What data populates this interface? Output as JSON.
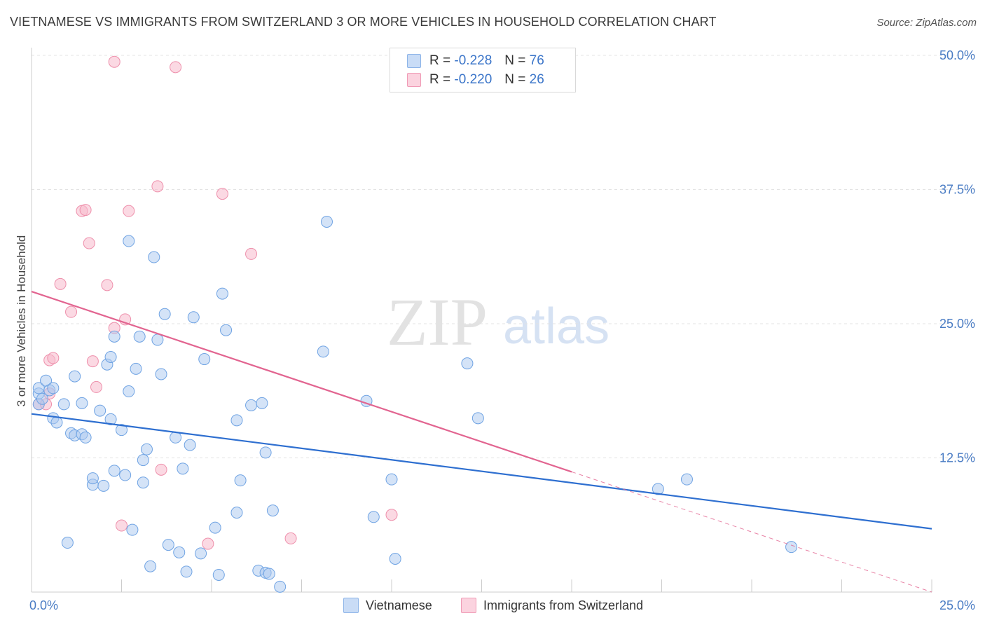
{
  "title": "VIETNAMESE VS IMMIGRANTS FROM SWITZERLAND 3 OR MORE VEHICLES IN HOUSEHOLD CORRELATION CHART",
  "source": "Source: ZipAtlas.com",
  "watermark": {
    "zip": "ZIP",
    "atlas": "atlas"
  },
  "stats_legend": [
    {
      "r_label": "R =",
      "r_value": "-0.228",
      "n_label": "N =",
      "n_value": "76",
      "color": "#a9c8f0"
    },
    {
      "r_label": "R =",
      "r_value": "-0.220",
      "n_label": "N =",
      "n_value": "26",
      "color": "#f7b9cc"
    }
  ],
  "bottom_legend": [
    {
      "label": "Vietnamese",
      "color": "#a9c8f0"
    },
    {
      "label": "Immigrants from Switzerland",
      "color": "#f7b9cc"
    }
  ],
  "chart_data": {
    "type": "scatter",
    "title": "VIETNAMESE VS IMMIGRANTS FROM SWITZERLAND 3 OR MORE VEHICLES IN HOUSEHOLD CORRELATION CHART",
    "xlabel": "",
    "ylabel": "3 or more Vehicles in Household",
    "xlim": [
      0,
      25
    ],
    "ylim": [
      0,
      50
    ],
    "x_tick_labels": [
      "0.0%",
      "25.0%"
    ],
    "y_ticks": [
      12.5,
      25.0,
      37.5,
      50.0
    ],
    "y_tick_labels": [
      "12.5%",
      "25.0%",
      "37.5%",
      "50.0%"
    ],
    "grid": true,
    "legend_position": "top-center",
    "colors": {
      "vietnamese": "#6fa3e3",
      "vietnamese_fill": "#a9c8f0",
      "swiss": "#ee8fab",
      "swiss_fill": "#f7b9cc",
      "blue_line": "#2e6fd0",
      "pink_line": "#e26490"
    },
    "series": [
      {
        "name": "Vietnamese",
        "points": [
          [
            0.2,
            17.5
          ],
          [
            0.2,
            18.5
          ],
          [
            0.2,
            19.0
          ],
          [
            0.3,
            18.0
          ],
          [
            0.4,
            19.7
          ],
          [
            0.5,
            18.8
          ],
          [
            0.6,
            16.2
          ],
          [
            0.6,
            19.0
          ],
          [
            0.7,
            15.8
          ],
          [
            0.9,
            17.5
          ],
          [
            1.0,
            4.6
          ],
          [
            1.1,
            14.8
          ],
          [
            1.2,
            14.6
          ],
          [
            1.2,
            20.1
          ],
          [
            1.4,
            14.7
          ],
          [
            1.4,
            17.6
          ],
          [
            1.5,
            14.4
          ],
          [
            1.7,
            10.0
          ],
          [
            1.7,
            10.6
          ],
          [
            1.9,
            16.9
          ],
          [
            2.0,
            9.9
          ],
          [
            2.1,
            21.2
          ],
          [
            2.2,
            21.9
          ],
          [
            2.2,
            16.1
          ],
          [
            2.3,
            23.8
          ],
          [
            2.3,
            11.3
          ],
          [
            2.5,
            15.1
          ],
          [
            2.6,
            10.9
          ],
          [
            2.7,
            18.7
          ],
          [
            2.7,
            32.7
          ],
          [
            2.8,
            5.8
          ],
          [
            2.9,
            20.8
          ],
          [
            3.0,
            23.8
          ],
          [
            3.1,
            12.3
          ],
          [
            3.1,
            10.2
          ],
          [
            3.2,
            13.3
          ],
          [
            3.3,
            2.4
          ],
          [
            3.4,
            31.2
          ],
          [
            3.5,
            23.5
          ],
          [
            3.6,
            20.3
          ],
          [
            3.7,
            25.9
          ],
          [
            3.8,
            4.4
          ],
          [
            4.0,
            14.4
          ],
          [
            4.1,
            3.7
          ],
          [
            4.2,
            11.5
          ],
          [
            4.3,
            1.9
          ],
          [
            4.4,
            13.7
          ],
          [
            4.5,
            25.6
          ],
          [
            4.7,
            3.6
          ],
          [
            4.8,
            21.7
          ],
          [
            5.1,
            6.0
          ],
          [
            5.2,
            1.6
          ],
          [
            5.3,
            27.8
          ],
          [
            5.4,
            24.4
          ],
          [
            5.7,
            7.4
          ],
          [
            5.8,
            10.4
          ],
          [
            5.7,
            16.0
          ],
          [
            6.1,
            17.4
          ],
          [
            6.3,
            2.0
          ],
          [
            6.4,
            17.6
          ],
          [
            6.5,
            1.8
          ],
          [
            6.5,
            13.0
          ],
          [
            6.6,
            1.7
          ],
          [
            6.7,
            7.6
          ],
          [
            6.9,
            0.5
          ],
          [
            8.1,
            22.4
          ],
          [
            8.2,
            34.5
          ],
          [
            9.3,
            17.8
          ],
          [
            9.5,
            7.0
          ],
          [
            10.0,
            10.5
          ],
          [
            10.1,
            3.1
          ],
          [
            12.1,
            21.3
          ],
          [
            12.4,
            16.2
          ],
          [
            17.4,
            9.6
          ],
          [
            18.2,
            10.5
          ],
          [
            21.1,
            4.2
          ]
        ]
      },
      {
        "name": "Immigrants from Switzerland",
        "points": [
          [
            0.2,
            17.5
          ],
          [
            0.4,
            17.5
          ],
          [
            0.5,
            18.5
          ],
          [
            0.5,
            21.6
          ],
          [
            0.6,
            21.8
          ],
          [
            0.8,
            28.7
          ],
          [
            1.1,
            26.1
          ],
          [
            1.4,
            35.5
          ],
          [
            1.5,
            35.6
          ],
          [
            1.6,
            32.5
          ],
          [
            1.7,
            21.5
          ],
          [
            1.8,
            19.1
          ],
          [
            2.1,
            28.6
          ],
          [
            2.3,
            49.4
          ],
          [
            2.3,
            24.6
          ],
          [
            2.5,
            6.2
          ],
          [
            2.6,
            25.4
          ],
          [
            2.7,
            35.5
          ],
          [
            3.5,
            37.8
          ],
          [
            3.6,
            11.4
          ],
          [
            4.0,
            48.9
          ],
          [
            4.9,
            4.5
          ],
          [
            5.3,
            37.1
          ],
          [
            6.1,
            31.5
          ],
          [
            7.2,
            5.0
          ],
          [
            10.0,
            7.2
          ]
        ]
      }
    ],
    "trend_lines": [
      {
        "series": "Vietnamese",
        "x": [
          0,
          25
        ],
        "y": [
          16.6,
          5.9
        ]
      },
      {
        "series": "Immigrants from Switzerland",
        "x": [
          0,
          15
        ],
        "y": [
          28.0,
          11.2
        ],
        "dashed_extension_to": [
          25,
          0.0
        ]
      }
    ]
  }
}
